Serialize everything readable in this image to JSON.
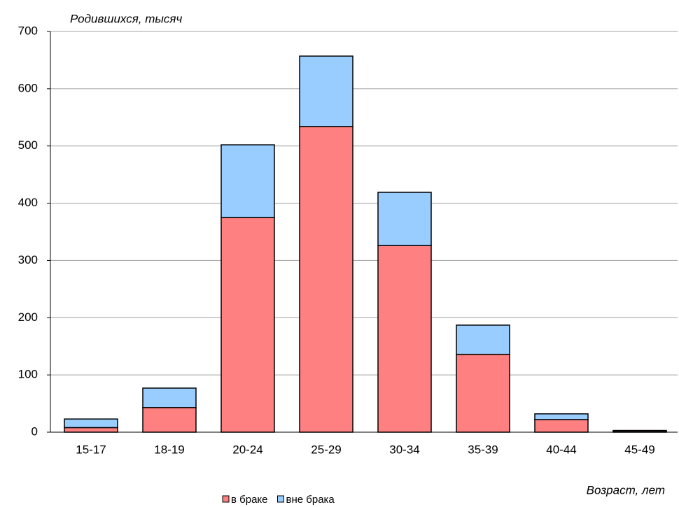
{
  "chart_data": {
    "type": "stacked-bar",
    "y_label": "Родившихся, тысяч",
    "x_label": "Возраст, лет",
    "categories": [
      "15-17",
      "18-19",
      "20-24",
      "25-29",
      "30-34",
      "35-39",
      "40-44",
      "45-49"
    ],
    "series": [
      {
        "name": "в браке",
        "color": "#ff8080",
        "values": [
          8,
          43,
          375,
          534,
          326,
          136,
          22,
          2
        ]
      },
      {
        "name": "вне брака",
        "color": "#99ccff",
        "values": [
          15,
          34,
          127,
          123,
          93,
          51,
          10,
          1
        ]
      }
    ],
    "ylim": [
      0,
      700
    ],
    "yticks": [
      0,
      100,
      200,
      300,
      400,
      500,
      600,
      700
    ],
    "grid": true,
    "legend": "bottom"
  }
}
